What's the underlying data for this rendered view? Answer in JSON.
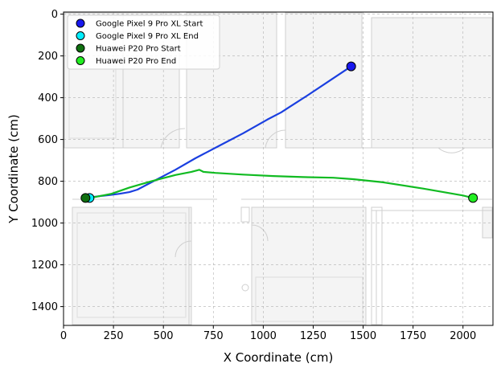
{
  "chart_data": {
    "type": "line",
    "title": "",
    "xlabel": "X Coordinate (cm)",
    "ylabel": "Y Coordinate (cm)",
    "xlim": [
      0,
      2150
    ],
    "ylim": [
      1490,
      -10
    ],
    "y_inverted": true,
    "grid": true,
    "legend_position": "top-left",
    "x_ticks": [
      "0",
      "250",
      "500",
      "750",
      "1000",
      "1250",
      "1500",
      "1750",
      "2000"
    ],
    "y_ticks": [
      "0",
      "200",
      "400",
      "600",
      "800",
      "1000",
      "1200",
      "1400"
    ],
    "background": "floor plan",
    "series": [
      {
        "name": "Google Pixel 9 Pro XL",
        "color": "#1a3fe0",
        "x": [
          1440,
          1330,
          1220,
          1130,
          1090,
          1020,
          900,
          780,
          660,
          560,
          480,
          440,
          400,
          370,
          330,
          280,
          230,
          190,
          150,
          130
        ],
        "y": [
          250,
          320,
          390,
          445,
          470,
          505,
          570,
          630,
          690,
          745,
          785,
          805,
          825,
          840,
          852,
          860,
          866,
          870,
          875,
          880
        ]
      },
      {
        "name": "Huawei P20 Pro",
        "color": "#11bb22",
        "x": [
          110,
          160,
          240,
          330,
          440,
          560,
          640,
          680,
          700,
          760,
          900,
          1050,
          1200,
          1350,
          1450,
          1600,
          1800,
          2000,
          2050
        ],
        "y": [
          880,
          875,
          860,
          830,
          800,
          770,
          755,
          745,
          755,
          760,
          768,
          775,
          780,
          783,
          790,
          805,
          835,
          868,
          880
        ]
      }
    ],
    "markers": [
      {
        "label": "Google Pixel 9 Pro XL Start",
        "x": 1440,
        "y": 250,
        "color": "#1818ee"
      },
      {
        "label": "Google Pixel 9 Pro XL End",
        "x": 130,
        "y": 880,
        "color": "#00eeff"
      },
      {
        "label": "Huawei P20 Pro Start",
        "x": 110,
        "y": 880,
        "color": "#107010"
      },
      {
        "label": "Huawei P20 Pro End",
        "x": 2050,
        "y": 880,
        "color": "#22ee22"
      }
    ]
  }
}
